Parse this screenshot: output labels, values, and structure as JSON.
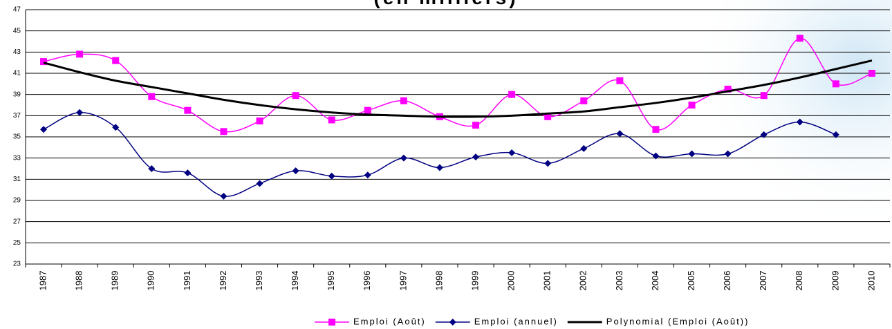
{
  "chart_data": {
    "type": "line",
    "title": "(en milliers)",
    "categories": [
      "1987",
      "1988",
      "1989",
      "1990",
      "1991",
      "1992",
      "1993",
      "1994",
      "1995",
      "1996",
      "1997",
      "1998",
      "1999",
      "2000",
      "2001",
      "2002",
      "2003",
      "2004",
      "2005",
      "2006",
      "2007",
      "2008",
      "2009",
      "2010"
    ],
    "series": [
      {
        "name": "Emploi (Août)",
        "color": "#ff00ff",
        "marker": "square",
        "values": [
          42.1,
          42.8,
          42.2,
          38.8,
          37.5,
          35.5,
          36.5,
          38.9,
          36.6,
          37.5,
          38.4,
          36.9,
          36.1,
          39.0,
          36.9,
          38.4,
          40.3,
          35.7,
          38.0,
          39.5,
          38.9,
          44.3,
          40.0,
          41.0
        ]
      },
      {
        "name": "Emploi (annuel)",
        "color": "#000080",
        "marker": "diamond",
        "values": [
          35.7,
          37.3,
          35.9,
          32.0,
          31.6,
          29.4,
          30.6,
          31.8,
          31.3,
          31.4,
          33.0,
          32.1,
          33.1,
          33.5,
          32.5,
          33.9,
          35.3,
          33.2,
          33.4,
          33.4,
          35.2,
          36.4,
          35.2,
          null
        ]
      },
      {
        "name": "Polynomial (Emploi (Août))",
        "color": "#000000",
        "marker": "none",
        "values": [
          42.0,
          41.1,
          40.3,
          39.7,
          39.1,
          38.5,
          38.0,
          37.6,
          37.3,
          37.1,
          37.0,
          36.9,
          36.9,
          37.0,
          37.2,
          37.4,
          37.8,
          38.2,
          38.7,
          39.3,
          39.9,
          40.6,
          41.4,
          42.2
        ]
      }
    ],
    "ylim": [
      23,
      47
    ],
    "yticks": [
      23,
      25,
      27,
      29,
      31,
      33,
      35,
      37,
      39,
      41,
      43,
      45,
      47
    ],
    "grid": true
  }
}
